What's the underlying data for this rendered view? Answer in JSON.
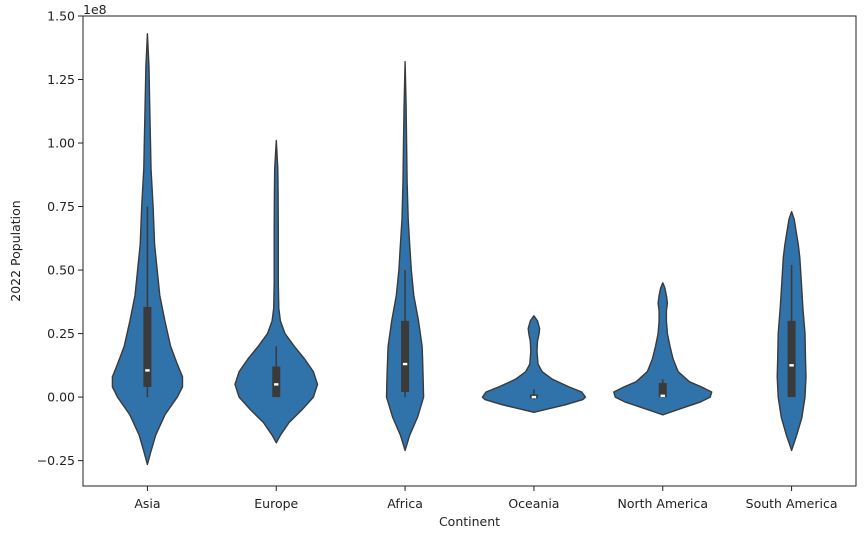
{
  "chart_data": {
    "type": "violin",
    "xlabel": "Continent",
    "ylabel": "2022 Population",
    "y_offset_text": "1e8",
    "ylim": [
      -0.35,
      1.5
    ],
    "y_scale": 100000000.0,
    "y_ticks": [
      -0.25,
      0.0,
      0.25,
      0.5,
      0.75,
      1.0,
      1.25,
      1.5
    ],
    "y_tick_labels": [
      "−0.25",
      "0.00",
      "0.25",
      "0.50",
      "0.75",
      "1.00",
      "1.25",
      "1.50"
    ],
    "grid": false,
    "legend": "none",
    "color": "#2f73aa",
    "edge_color": "#3a3a3a",
    "categories": [
      "Asia",
      "Europe",
      "Africa",
      "Oceania",
      "North America",
      "South America"
    ],
    "violins": [
      {
        "name": "Asia",
        "min": 0.0,
        "q1": 0.04,
        "median": 0.105,
        "q3": 0.355,
        "whisker_high": 0.75,
        "profile": [
          [
            -0.265,
            0.0
          ],
          [
            -0.22,
            0.06
          ],
          [
            -0.15,
            0.16
          ],
          [
            -0.07,
            0.34
          ],
          [
            0.0,
            0.58
          ],
          [
            0.04,
            0.68
          ],
          [
            0.08,
            0.68
          ],
          [
            0.13,
            0.58
          ],
          [
            0.2,
            0.45
          ],
          [
            0.3,
            0.34
          ],
          [
            0.4,
            0.24
          ],
          [
            0.5,
            0.19
          ],
          [
            0.6,
            0.14
          ],
          [
            0.75,
            0.11
          ],
          [
            0.9,
            0.07
          ],
          [
            1.0,
            0.06
          ],
          [
            1.15,
            0.045
          ],
          [
            1.3,
            0.03
          ],
          [
            1.43,
            0.0
          ]
        ]
      },
      {
        "name": "Europe",
        "min": 0.0,
        "q1": 0.0,
        "median": 0.05,
        "q3": 0.12,
        "whisker_high": 0.2,
        "profile": [
          [
            -0.18,
            0.0
          ],
          [
            -0.15,
            0.08
          ],
          [
            -0.1,
            0.25
          ],
          [
            -0.05,
            0.5
          ],
          [
            0.0,
            0.72
          ],
          [
            0.05,
            0.8
          ],
          [
            0.1,
            0.72
          ],
          [
            0.15,
            0.55
          ],
          [
            0.2,
            0.35
          ],
          [
            0.25,
            0.17
          ],
          [
            0.3,
            0.08
          ],
          [
            0.35,
            0.05
          ],
          [
            0.45,
            0.04
          ],
          [
            0.55,
            0.04
          ],
          [
            0.65,
            0.04
          ],
          [
            0.8,
            0.035
          ],
          [
            0.9,
            0.03
          ],
          [
            1.01,
            0.0
          ]
        ]
      },
      {
        "name": "Africa",
        "min": 0.0,
        "q1": 0.02,
        "median": 0.13,
        "q3": 0.3,
        "whisker_high": 0.5,
        "profile": [
          [
            -0.21,
            0.0
          ],
          [
            -0.15,
            0.09
          ],
          [
            -0.08,
            0.24
          ],
          [
            0.0,
            0.36
          ],
          [
            0.08,
            0.35
          ],
          [
            0.15,
            0.34
          ],
          [
            0.2,
            0.33
          ],
          [
            0.3,
            0.26
          ],
          [
            0.4,
            0.17
          ],
          [
            0.5,
            0.12
          ],
          [
            0.6,
            0.09
          ],
          [
            0.7,
            0.06
          ],
          [
            0.85,
            0.04
          ],
          [
            1.0,
            0.03
          ],
          [
            1.15,
            0.02
          ],
          [
            1.32,
            0.0
          ]
        ]
      },
      {
        "name": "Oceania",
        "min": -0.01,
        "q1": -0.005,
        "median": 0.0,
        "q3": 0.01,
        "whisker_high": 0.03,
        "profile": [
          [
            -0.06,
            0.0
          ],
          [
            -0.05,
            0.2
          ],
          [
            -0.03,
            0.62
          ],
          [
            -0.01,
            0.95
          ],
          [
            0.0,
            1.0
          ],
          [
            0.02,
            0.93
          ],
          [
            0.04,
            0.68
          ],
          [
            0.07,
            0.36
          ],
          [
            0.1,
            0.16
          ],
          [
            0.13,
            0.08
          ],
          [
            0.18,
            0.06
          ],
          [
            0.22,
            0.07
          ],
          [
            0.25,
            0.1
          ],
          [
            0.27,
            0.11
          ],
          [
            0.3,
            0.07
          ],
          [
            0.32,
            0.0
          ]
        ]
      },
      {
        "name": "North America",
        "min": 0.0,
        "q1": 0.0,
        "median": 0.005,
        "q3": 0.055,
        "whisker_high": 0.07,
        "profile": [
          [
            -0.07,
            0.0
          ],
          [
            -0.05,
            0.28
          ],
          [
            -0.02,
            0.72
          ],
          [
            0.0,
            0.92
          ],
          [
            0.02,
            0.95
          ],
          [
            0.04,
            0.75
          ],
          [
            0.06,
            0.52
          ],
          [
            0.1,
            0.3
          ],
          [
            0.15,
            0.2
          ],
          [
            0.2,
            0.14
          ],
          [
            0.25,
            0.09
          ],
          [
            0.3,
            0.07
          ],
          [
            0.34,
            0.07
          ],
          [
            0.37,
            0.09
          ],
          [
            0.4,
            0.07
          ],
          [
            0.43,
            0.04
          ],
          [
            0.45,
            0.0
          ]
        ]
      },
      {
        "name": "South America",
        "min": 0.0,
        "q1": 0.0,
        "median": 0.125,
        "q3": 0.3,
        "whisker_high": 0.52,
        "profile": [
          [
            -0.21,
            0.0
          ],
          [
            -0.15,
            0.1
          ],
          [
            -0.08,
            0.2
          ],
          [
            0.0,
            0.26
          ],
          [
            0.08,
            0.28
          ],
          [
            0.15,
            0.27
          ],
          [
            0.25,
            0.26
          ],
          [
            0.35,
            0.22
          ],
          [
            0.45,
            0.19
          ],
          [
            0.55,
            0.16
          ],
          [
            0.6,
            0.13
          ],
          [
            0.65,
            0.09
          ],
          [
            0.7,
            0.05
          ],
          [
            0.73,
            0.0
          ]
        ]
      }
    ]
  }
}
